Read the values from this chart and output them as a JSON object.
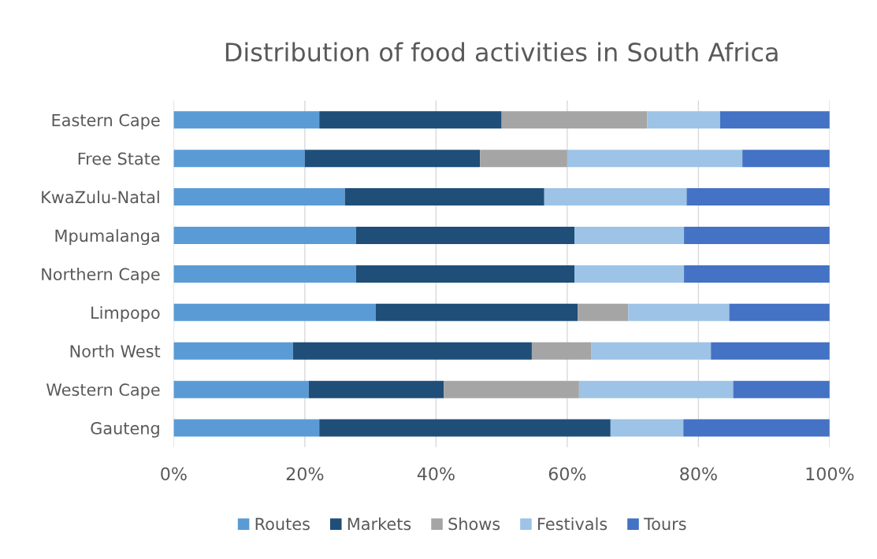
{
  "chart_data": {
    "type": "bar",
    "title": "Distribution of food activities in South Africa",
    "orientation": "horizontal",
    "stacked": true,
    "categories": [
      "Eastern Cape",
      "Free State",
      "KwaZulu-Natal",
      "Mpumalanga",
      "Northern Cape",
      "Limpopo",
      "North West",
      "Western Cape",
      "Gauteng"
    ],
    "series": [
      {
        "name": "Routes",
        "color": "#5b9bd5",
        "values": [
          22.2,
          20.0,
          26.1,
          27.8,
          27.8,
          30.8,
          18.2,
          20.6,
          22.2
        ]
      },
      {
        "name": "Markets",
        "color": "#1f4e79",
        "values": [
          27.8,
          26.7,
          30.4,
          33.3,
          33.3,
          30.8,
          36.4,
          20.6,
          44.4
        ]
      },
      {
        "name": "Shows",
        "color": "#a5a5a5",
        "values": [
          22.2,
          13.3,
          0,
          0,
          0,
          7.7,
          9.1,
          20.6,
          0
        ]
      },
      {
        "name": "Festivals",
        "color": "#9dc3e6",
        "values": [
          11.1,
          26.7,
          21.7,
          16.7,
          16.7,
          15.4,
          18.2,
          23.5,
          11.1
        ]
      },
      {
        "name": "Tours",
        "color": "#4472c4",
        "values": [
          16.7,
          13.3,
          21.8,
          22.2,
          22.2,
          15.3,
          18.1,
          14.7,
          22.3
        ]
      }
    ],
    "xlim": [
      0,
      100
    ],
    "xticks": [
      {
        "value": 0,
        "label": "0%"
      },
      {
        "value": 20,
        "label": "20%"
      },
      {
        "value": 40,
        "label": "40%"
      },
      {
        "value": 60,
        "label": "60%"
      },
      {
        "value": 80,
        "label": "80%"
      },
      {
        "value": 100,
        "label": "100%"
      }
    ],
    "grid": "x",
    "legend": "bottom"
  }
}
